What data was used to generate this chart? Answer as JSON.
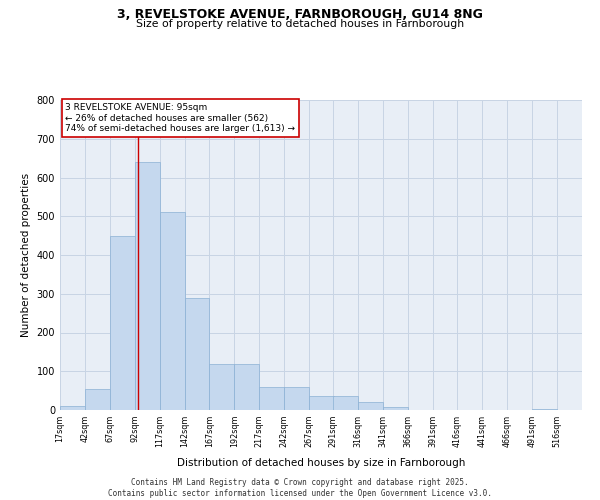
{
  "title_line1": "3, REVELSTOKE AVENUE, FARNBOROUGH, GU14 8NG",
  "title_line2": "Size of property relative to detached houses in Farnborough",
  "xlabel": "Distribution of detached houses by size in Farnborough",
  "ylabel": "Number of detached properties",
  "bar_color": "#c5d8ee",
  "bar_edge_color": "#8ab0d4",
  "grid_color": "#c8d4e4",
  "background_color": "#e8eef6",
  "bins": [
    17,
    42,
    67,
    92,
    117,
    142,
    167,
    192,
    217,
    242,
    267,
    291,
    316,
    341,
    366,
    391,
    416,
    441,
    466,
    491,
    516
  ],
  "values": [
    10,
    55,
    450,
    640,
    510,
    290,
    120,
    120,
    60,
    60,
    35,
    35,
    20,
    8,
    0,
    0,
    0,
    0,
    0,
    2,
    0
  ],
  "property_size": 95,
  "vline_color": "#cc0000",
  "annotation_text": "3 REVELSTOKE AVENUE: 95sqm\n← 26% of detached houses are smaller (562)\n74% of semi-detached houses are larger (1,613) →",
  "annotation_box_color": "#cc0000",
  "ylim": [
    0,
    800
  ],
  "yticks": [
    0,
    100,
    200,
    300,
    400,
    500,
    600,
    700,
    800
  ],
  "footer_line1": "Contains HM Land Registry data © Crown copyright and database right 2025.",
  "footer_line2": "Contains public sector information licensed under the Open Government Licence v3.0."
}
